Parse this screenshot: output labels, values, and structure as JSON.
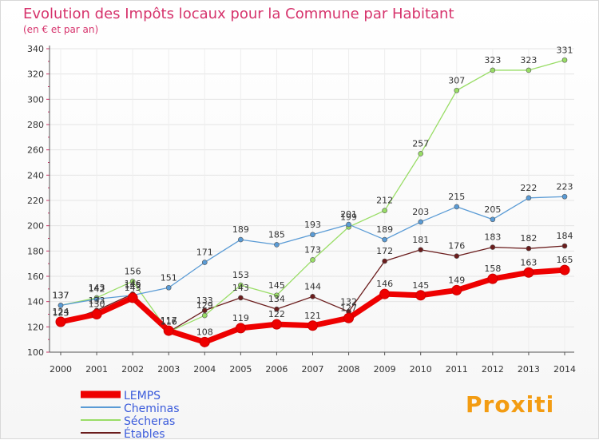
{
  "chart_data": {
    "type": "line",
    "title": "Evolution des Impôts locaux pour la Commune par Habitant",
    "subtitle": "(en € et par an)",
    "xlabel": "",
    "ylabel": "",
    "x": [
      "2000",
      "2001",
      "2002",
      "2003",
      "2004",
      "2005",
      "2006",
      "2007",
      "2008",
      "2009",
      "2010",
      "2011",
      "2012",
      "2013",
      "2014"
    ],
    "ylim": [
      100,
      340
    ],
    "yticks": [
      100,
      120,
      140,
      160,
      180,
      200,
      220,
      240,
      260,
      280,
      300,
      320,
      340
    ],
    "grid": true,
    "legend_position": "bottom-left",
    "series": [
      {
        "name": "LEMPS",
        "color": "#ee0000",
        "values": [
          124,
          130,
          143,
          117,
          108,
          119,
          122,
          121,
          127,
          146,
          145,
          149,
          158,
          163,
          165
        ]
      },
      {
        "name": "Cheminas",
        "color": "#5a9bd5",
        "values": [
          137,
          142,
          145,
          151,
          171,
          189,
          185,
          193,
          201,
          189,
          203,
          215,
          205,
          222,
          223
        ]
      },
      {
        "name": "Sécheras",
        "color": "#99dd66",
        "values": [
          137,
          143,
          156,
          116,
          129,
          153,
          145,
          173,
          199,
          212,
          257,
          307,
          323,
          323,
          331
        ]
      },
      {
        "name": "Étables",
        "color": "#6b1d1d",
        "values": [
          123,
          133,
          146,
          116,
          133,
          143,
          134,
          144,
          132,
          172,
          181,
          176,
          183,
          182,
          184
        ]
      }
    ]
  },
  "branding": {
    "logo_text": "Proxiti"
  }
}
